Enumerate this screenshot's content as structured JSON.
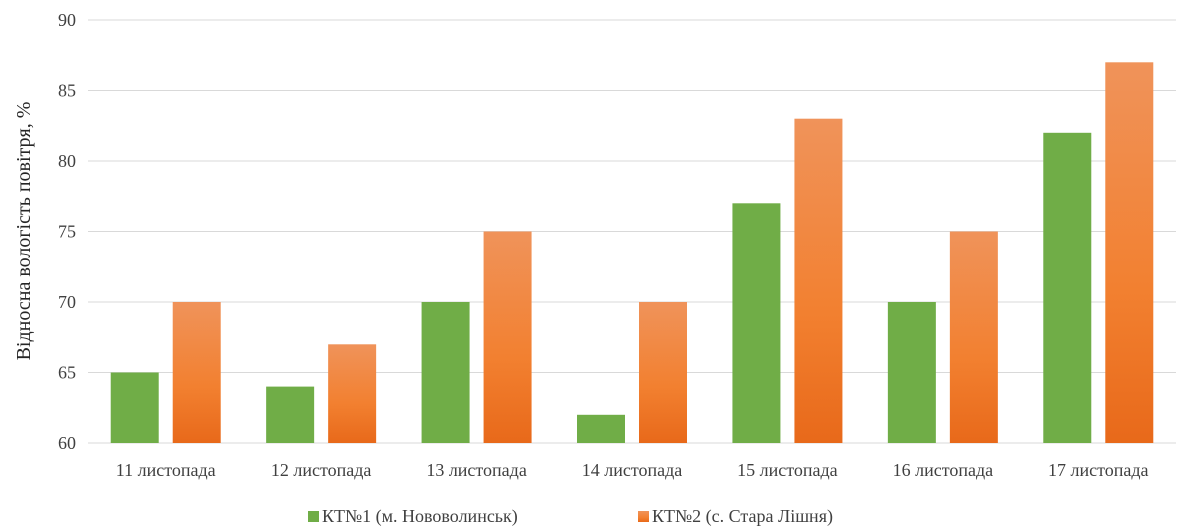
{
  "chart_data": {
    "type": "bar",
    "title": "",
    "xlabel": "",
    "ylabel": "Відносна вологість повітря, %",
    "ylim": [
      60,
      90
    ],
    "yticks": [
      60,
      65,
      70,
      75,
      80,
      85,
      90
    ],
    "grid": true,
    "legend_position": "bottom",
    "categories": [
      "11 листопада",
      "12 листопада",
      "13 листопада",
      "14 листопада",
      "15 листопада",
      "16 листопада",
      "17 листопада"
    ],
    "series": [
      {
        "name": "КТ№1 (м. Нововолинськ)",
        "color": "#70ad47",
        "values": [
          65,
          64,
          70,
          62,
          77,
          70,
          82
        ]
      },
      {
        "name": "КТ№2 (с. Стара Лішня)",
        "color": "#ed7d31",
        "values": [
          70,
          67,
          75,
          70,
          83,
          75,
          87
        ]
      }
    ]
  }
}
